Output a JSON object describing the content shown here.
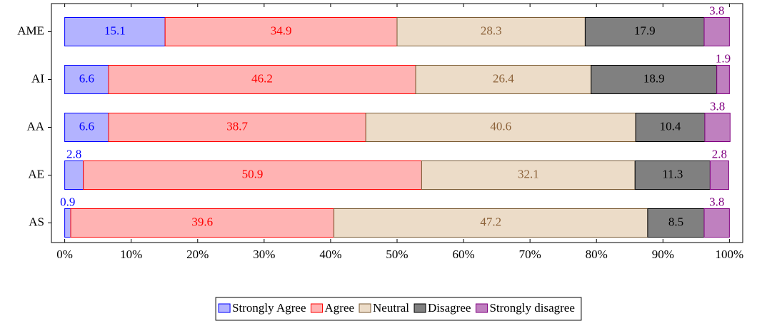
{
  "chart_data": {
    "type": "stacked-bar-horizontal",
    "categories": [
      "AME",
      "AI",
      "AA",
      "AE",
      "AS"
    ],
    "series": [
      {
        "name": "Strongly Agree",
        "color": "#b3b3ff",
        "edge": "#0000ff",
        "text_color": "#0000ff",
        "values": [
          15.1,
          6.6,
          6.6,
          2.8,
          0.9
        ]
      },
      {
        "name": "Agree",
        "color": "#ffb3b3",
        "edge": "#ff0000",
        "text_color": "#ff0000",
        "values": [
          34.9,
          46.2,
          38.7,
          50.9,
          39.6
        ]
      },
      {
        "name": "Neutral",
        "color": "#ecdcc8",
        "edge": "#7a5a33",
        "text_color": "#8c6239",
        "values": [
          28.3,
          26.4,
          40.6,
          32.1,
          47.2
        ]
      },
      {
        "name": "Disagree",
        "color": "#808080",
        "edge": "#000000",
        "text_color": "#000000",
        "values": [
          17.9,
          18.9,
          10.4,
          11.3,
          8.5
        ]
      },
      {
        "name": "Strongly disagree",
        "color": "#bf80bf",
        "edge": "#800080",
        "text_color": "#800080",
        "values": [
          3.8,
          1.9,
          3.8,
          2.8,
          3.8
        ]
      }
    ],
    "xlim": [
      -2,
      102
    ],
    "xticks": [
      {
        "value": 0,
        "label": "0%"
      },
      {
        "value": 10,
        "label": "10%"
      },
      {
        "value": 20,
        "label": "20%"
      },
      {
        "value": 30,
        "label": "30%"
      },
      {
        "value": 40,
        "label": "40%"
      },
      {
        "value": 50,
        "label": "50%"
      },
      {
        "value": 60,
        "label": "60%"
      },
      {
        "value": 70,
        "label": "70%"
      },
      {
        "value": 80,
        "label": "80%"
      },
      {
        "value": 90,
        "label": "90%"
      },
      {
        "value": 100,
        "label": "100%"
      }
    ],
    "legend": "bottom"
  }
}
